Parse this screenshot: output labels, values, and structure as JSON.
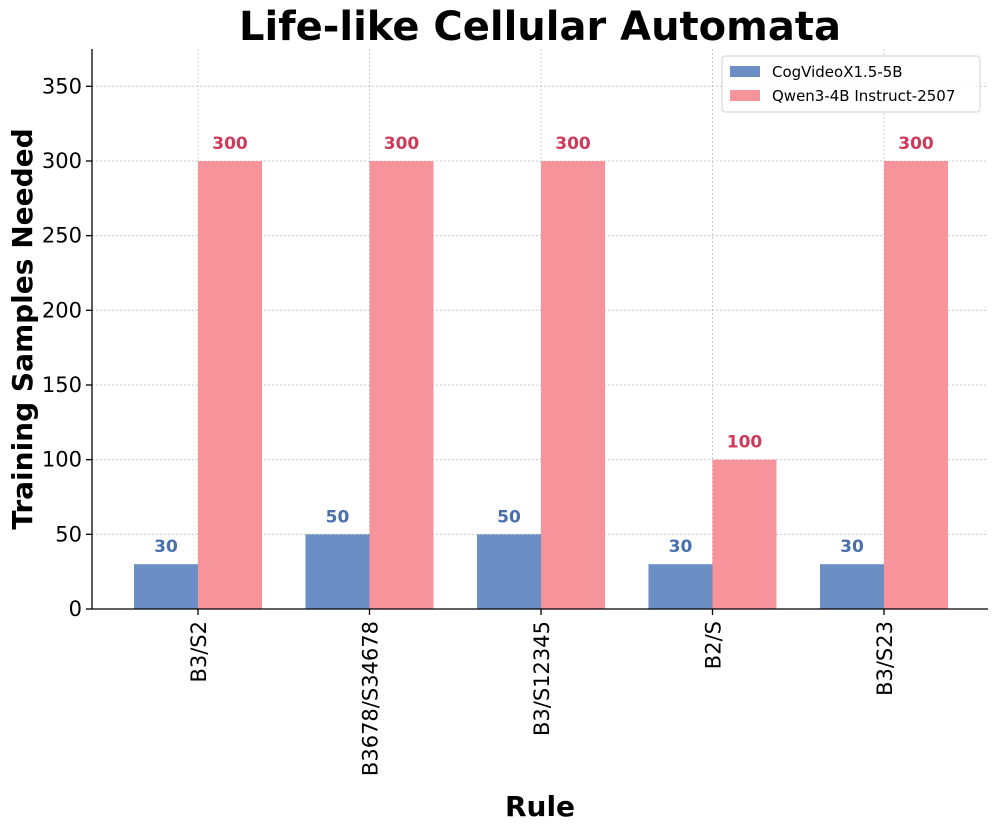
{
  "chart_data": {
    "type": "bar",
    "title": "Life-like Cellular Automata",
    "xlabel": "Rule",
    "ylabel": "Training Samples Needed",
    "categories": [
      "B3/S2",
      "B3678/S34678",
      "B3/S12345",
      "B2/S",
      "B3/S23"
    ],
    "series": [
      {
        "name": "CogVideoX1.5-5B",
        "values": [
          30,
          50,
          50,
          30,
          30
        ],
        "color": "#6b8ec4",
        "label_color": "#4a6faf"
      },
      {
        "name": "Qwen3-4B Instruct-2507",
        "values": [
          300,
          300,
          300,
          100,
          300
        ],
        "color": "#f7939a",
        "label_color": "#d03a5a"
      }
    ],
    "ylim": [
      0,
      375
    ],
    "yticks": [
      0,
      50,
      100,
      150,
      200,
      250,
      300,
      350
    ],
    "grid": true,
    "legend_position": "top-right"
  }
}
